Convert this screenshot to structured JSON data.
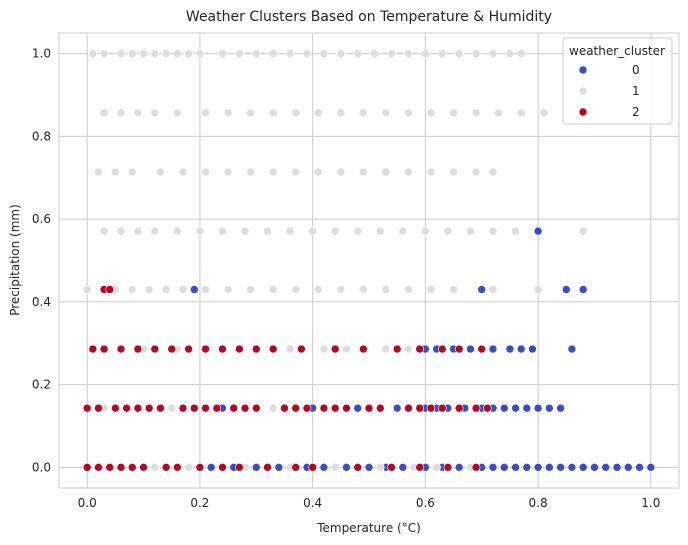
{
  "chart_data": {
    "type": "scatter",
    "title": "Weather Clusters Based on Temperature & Humidity",
    "xlabel": "Temperature (°C)",
    "ylabel": "Precipitation (mm)",
    "xlim": [
      -0.05,
      1.05
    ],
    "ylim": [
      -0.05,
      1.05
    ],
    "xticks": [
      "0.0",
      "0.2",
      "0.4",
      "0.6",
      "0.8",
      "1.0"
    ],
    "yticks": [
      "0.0",
      "0.2",
      "0.4",
      "0.6",
      "0.8",
      "1.0"
    ],
    "grid": true,
    "legend": {
      "title": "weather_cluster",
      "placement": "top-right"
    },
    "series": [
      {
        "name": "0",
        "color": "#3b4cc0",
        "points": [
          [
            0.19,
            0.43
          ],
          [
            0.7,
            0.43
          ],
          [
            0.8,
            0.571
          ],
          [
            0.85,
            0.43
          ],
          [
            0.88,
            0.43
          ],
          [
            0.6,
            0.286
          ],
          [
            0.62,
            0.286
          ],
          [
            0.65,
            0.286
          ],
          [
            0.68,
            0.286
          ],
          [
            0.72,
            0.286
          ],
          [
            0.75,
            0.286
          ],
          [
            0.77,
            0.286
          ],
          [
            0.79,
            0.286
          ],
          [
            0.86,
            0.286
          ],
          [
            0.24,
            0.143
          ],
          [
            0.4,
            0.143
          ],
          [
            0.48,
            0.143
          ],
          [
            0.55,
            0.143
          ],
          [
            0.6,
            0.143
          ],
          [
            0.62,
            0.143
          ],
          [
            0.64,
            0.143
          ],
          [
            0.67,
            0.143
          ],
          [
            0.7,
            0.143
          ],
          [
            0.72,
            0.143
          ],
          [
            0.74,
            0.143
          ],
          [
            0.76,
            0.143
          ],
          [
            0.78,
            0.143
          ],
          [
            0.8,
            0.143
          ],
          [
            0.82,
            0.143
          ],
          [
            0.84,
            0.143
          ],
          [
            0.22,
            0
          ],
          [
            0.26,
            0
          ],
          [
            0.3,
            0
          ],
          [
            0.34,
            0
          ],
          [
            0.39,
            0
          ],
          [
            0.42,
            0
          ],
          [
            0.46,
            0
          ],
          [
            0.5,
            0
          ],
          [
            0.53,
            0
          ],
          [
            0.56,
            0
          ],
          [
            0.6,
            0
          ],
          [
            0.63,
            0
          ],
          [
            0.66,
            0
          ],
          [
            0.7,
            0
          ],
          [
            0.72,
            0
          ],
          [
            0.74,
            0
          ],
          [
            0.76,
            0
          ],
          [
            0.78,
            0
          ],
          [
            0.8,
            0
          ],
          [
            0.82,
            0
          ],
          [
            0.84,
            0
          ],
          [
            0.86,
            0
          ],
          [
            0.88,
            0
          ],
          [
            0.9,
            0
          ],
          [
            0.92,
            0
          ],
          [
            0.94,
            0
          ],
          [
            0.96,
            0
          ],
          [
            0.98,
            0
          ],
          [
            1.0,
            0
          ]
        ]
      },
      {
        "name": "1",
        "color": "#dddddd",
        "points": [
          [
            0.01,
            1
          ],
          [
            0.03,
            1
          ],
          [
            0.06,
            1
          ],
          [
            0.08,
            1
          ],
          [
            0.1,
            1
          ],
          [
            0.12,
            1
          ],
          [
            0.14,
            1
          ],
          [
            0.16,
            1
          ],
          [
            0.18,
            1
          ],
          [
            0.2,
            1
          ],
          [
            0.24,
            1
          ],
          [
            0.27,
            1
          ],
          [
            0.3,
            1
          ],
          [
            0.33,
            1
          ],
          [
            0.36,
            1
          ],
          [
            0.39,
            1
          ],
          [
            0.42,
            1
          ],
          [
            0.45,
            1
          ],
          [
            0.48,
            1
          ],
          [
            0.51,
            1
          ],
          [
            0.54,
            1
          ],
          [
            0.57,
            1
          ],
          [
            0.6,
            1
          ],
          [
            0.63,
            1
          ],
          [
            0.66,
            1
          ],
          [
            0.69,
            1
          ],
          [
            0.72,
            1
          ],
          [
            0.75,
            1
          ],
          [
            0.77,
            1
          ],
          [
            0.03,
            0.857
          ],
          [
            0.06,
            0.857
          ],
          [
            0.09,
            0.857
          ],
          [
            0.12,
            0.857
          ],
          [
            0.16,
            0.857
          ],
          [
            0.21,
            0.857
          ],
          [
            0.25,
            0.857
          ],
          [
            0.29,
            0.857
          ],
          [
            0.33,
            0.857
          ],
          [
            0.37,
            0.857
          ],
          [
            0.41,
            0.857
          ],
          [
            0.45,
            0.857
          ],
          [
            0.49,
            0.857
          ],
          [
            0.53,
            0.857
          ],
          [
            0.57,
            0.857
          ],
          [
            0.61,
            0.857
          ],
          [
            0.65,
            0.857
          ],
          [
            0.69,
            0.857
          ],
          [
            0.73,
            0.857
          ],
          [
            0.77,
            0.857
          ],
          [
            0.81,
            0.857
          ],
          [
            0.02,
            0.714
          ],
          [
            0.05,
            0.714
          ],
          [
            0.08,
            0.714
          ],
          [
            0.13,
            0.714
          ],
          [
            0.17,
            0.714
          ],
          [
            0.21,
            0.714
          ],
          [
            0.25,
            0.714
          ],
          [
            0.29,
            0.714
          ],
          [
            0.33,
            0.714
          ],
          [
            0.37,
            0.714
          ],
          [
            0.41,
            0.714
          ],
          [
            0.45,
            0.714
          ],
          [
            0.49,
            0.714
          ],
          [
            0.53,
            0.714
          ],
          [
            0.57,
            0.714
          ],
          [
            0.61,
            0.714
          ],
          [
            0.65,
            0.714
          ],
          [
            0.69,
            0.714
          ],
          [
            0.72,
            0.714
          ],
          [
            0.03,
            0.571
          ],
          [
            0.06,
            0.571
          ],
          [
            0.09,
            0.571
          ],
          [
            0.12,
            0.571
          ],
          [
            0.16,
            0.571
          ],
          [
            0.2,
            0.571
          ],
          [
            0.24,
            0.571
          ],
          [
            0.28,
            0.571
          ],
          [
            0.32,
            0.571
          ],
          [
            0.36,
            0.571
          ],
          [
            0.4,
            0.571
          ],
          [
            0.44,
            0.571
          ],
          [
            0.48,
            0.571
          ],
          [
            0.52,
            0.571
          ],
          [
            0.56,
            0.571
          ],
          [
            0.6,
            0.571
          ],
          [
            0.64,
            0.571
          ],
          [
            0.68,
            0.571
          ],
          [
            0.72,
            0.571
          ],
          [
            0.76,
            0.571
          ],
          [
            0.88,
            0.571
          ],
          [
            0.0,
            0.43
          ],
          [
            0.05,
            0.43
          ],
          [
            0.08,
            0.43
          ],
          [
            0.11,
            0.43
          ],
          [
            0.14,
            0.43
          ],
          [
            0.17,
            0.43
          ],
          [
            0.21,
            0.43
          ],
          [
            0.25,
            0.43
          ],
          [
            0.29,
            0.43
          ],
          [
            0.33,
            0.43
          ],
          [
            0.37,
            0.43
          ],
          [
            0.41,
            0.43
          ],
          [
            0.45,
            0.43
          ],
          [
            0.49,
            0.43
          ],
          [
            0.53,
            0.43
          ],
          [
            0.57,
            0.43
          ],
          [
            0.61,
            0.43
          ],
          [
            0.65,
            0.43
          ],
          [
            0.72,
            0.43
          ],
          [
            0.8,
            0.43
          ],
          [
            0.1,
            0.286
          ],
          [
            0.16,
            0.286
          ],
          [
            0.36,
            0.286
          ],
          [
            0.42,
            0.286
          ],
          [
            0.46,
            0.286
          ],
          [
            0.53,
            0.286
          ],
          [
            0.57,
            0.286
          ],
          [
            0.03,
            0.143
          ],
          [
            0.15,
            0.143
          ],
          [
            0.33,
            0.143
          ],
          [
            0.12,
            0
          ],
          [
            0.18,
            0
          ],
          [
            0.28,
            0
          ],
          [
            0.36,
            0
          ],
          [
            0.44,
            0
          ],
          [
            0.52,
            0
          ],
          [
            0.58,
            0
          ],
          [
            0.62,
            0
          ],
          [
            0.68,
            0
          ]
        ]
      },
      {
        "name": "2",
        "color": "#b40426",
        "points": [
          [
            0.03,
            0.43
          ],
          [
            0.04,
            0.43
          ],
          [
            0.01,
            0.286
          ],
          [
            0.03,
            0.286
          ],
          [
            0.06,
            0.286
          ],
          [
            0.09,
            0.286
          ],
          [
            0.12,
            0.286
          ],
          [
            0.15,
            0.286
          ],
          [
            0.18,
            0.286
          ],
          [
            0.21,
            0.286
          ],
          [
            0.24,
            0.286
          ],
          [
            0.27,
            0.286
          ],
          [
            0.3,
            0.286
          ],
          [
            0.33,
            0.286
          ],
          [
            0.38,
            0.286
          ],
          [
            0.44,
            0.286
          ],
          [
            0.49,
            0.286
          ],
          [
            0.55,
            0.286
          ],
          [
            0.59,
            0.286
          ],
          [
            0.63,
            0.286
          ],
          [
            0.66,
            0.286
          ],
          [
            0.7,
            0.286
          ],
          [
            0.0,
            0.143
          ],
          [
            0.02,
            0.143
          ],
          [
            0.05,
            0.143
          ],
          [
            0.07,
            0.143
          ],
          [
            0.09,
            0.143
          ],
          [
            0.11,
            0.143
          ],
          [
            0.13,
            0.143
          ],
          [
            0.17,
            0.143
          ],
          [
            0.19,
            0.143
          ],
          [
            0.21,
            0.143
          ],
          [
            0.23,
            0.143
          ],
          [
            0.26,
            0.143
          ],
          [
            0.28,
            0.143
          ],
          [
            0.3,
            0.143
          ],
          [
            0.35,
            0.143
          ],
          [
            0.37,
            0.143
          ],
          [
            0.39,
            0.143
          ],
          [
            0.42,
            0.143
          ],
          [
            0.44,
            0.143
          ],
          [
            0.46,
            0.143
          ],
          [
            0.5,
            0.143
          ],
          [
            0.52,
            0.143
          ],
          [
            0.57,
            0.143
          ],
          [
            0.59,
            0.143
          ],
          [
            0.61,
            0.143
          ],
          [
            0.63,
            0.143
          ],
          [
            0.66,
            0.143
          ],
          [
            0.69,
            0.143
          ],
          [
            0.71,
            0.143
          ],
          [
            0.0,
            0
          ],
          [
            0.02,
            0
          ],
          [
            0.04,
            0
          ],
          [
            0.06,
            0
          ],
          [
            0.08,
            0
          ],
          [
            0.1,
            0
          ],
          [
            0.14,
            0
          ],
          [
            0.16,
            0
          ],
          [
            0.2,
            0
          ],
          [
            0.24,
            0
          ],
          [
            0.27,
            0
          ],
          [
            0.32,
            0
          ],
          [
            0.37,
            0
          ],
          [
            0.4,
            0
          ],
          [
            0.48,
            0
          ],
          [
            0.54,
            0
          ],
          [
            0.59,
            0
          ],
          [
            0.64,
            0
          ],
          [
            0.69,
            0
          ]
        ]
      }
    ]
  }
}
